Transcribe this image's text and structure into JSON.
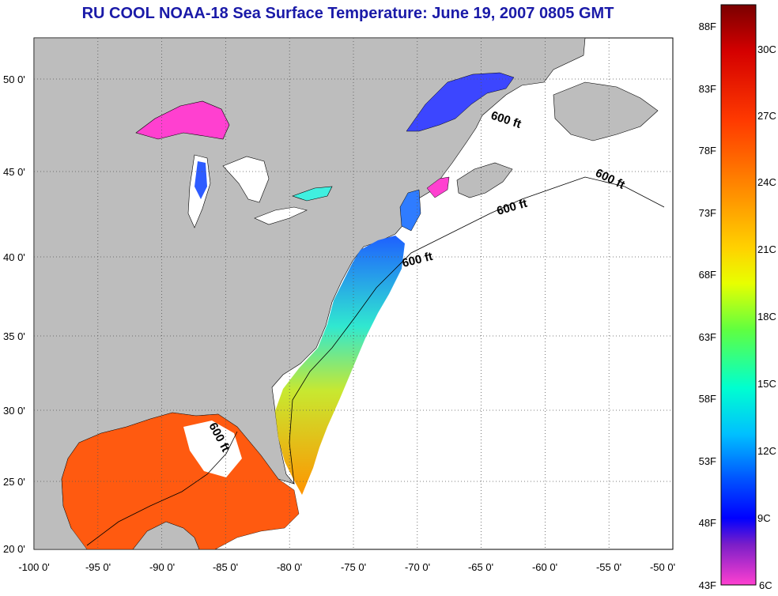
{
  "title": "RU COOL  NOAA-18  Sea Surface Temperature:  June 19, 2007 0805 GMT",
  "map": {
    "lon_labels": [
      "-100 0'",
      "-95 0'",
      "-90 0'",
      "-85 0'",
      "-80 0'",
      "-75 0'",
      "-70 0'",
      "-65 0'",
      "-60 0'",
      "-55 0'",
      "-50 0'"
    ],
    "lat_labels": [
      "50 0'",
      "45 0'",
      "40 0'",
      "35 0'",
      "30 0'",
      "25 0'",
      "20 0'"
    ],
    "contour_labels": [
      "600 ft",
      "600 ft",
      "600 ft",
      "600 ft",
      "600 ft"
    ],
    "colors": {
      "land": "#bdbdbd",
      "no_data": "#ffffff",
      "grid": "#555555"
    }
  },
  "colorbar": {
    "fahrenheit": [
      "88F",
      "83F",
      "78F",
      "73F",
      "68F",
      "63F",
      "58F",
      "53F",
      "48F",
      "43F"
    ],
    "celsius": [
      "30C",
      "27C",
      "24C",
      "21C",
      "18C",
      "15C",
      "12C",
      "9C",
      "6C"
    ],
    "gradient_stops": [
      "#7a0000",
      "#d40000",
      "#ff3a00",
      "#ff8c00",
      "#ffd200",
      "#e8ff00",
      "#60ff40",
      "#00ffd0",
      "#00c0ff",
      "#0050ff",
      "#0000ff",
      "#7a1ec8",
      "#ff40d0"
    ]
  }
}
